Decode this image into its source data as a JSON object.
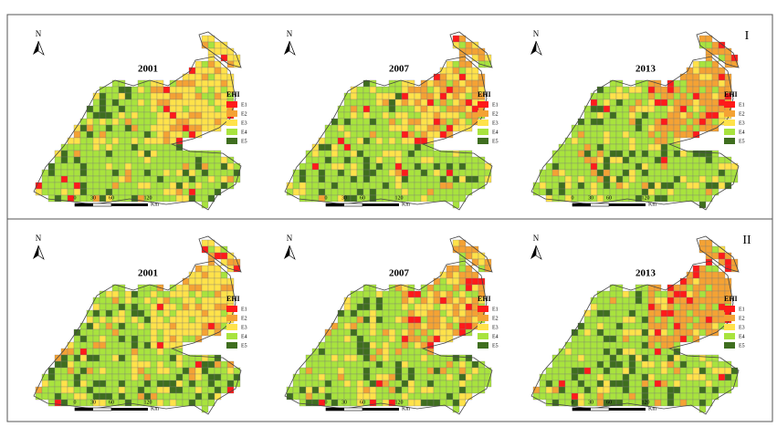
{
  "panels": [
    {
      "label": "I",
      "maps": [
        {
          "year": "2001"
        },
        {
          "year": "2007"
        },
        {
          "year": "2013"
        }
      ]
    },
    {
      "label": "II",
      "maps": [
        {
          "year": "2001"
        },
        {
          "year": "2007"
        },
        {
          "year": "2013"
        }
      ]
    }
  ],
  "legend": {
    "title": "EHI",
    "items": [
      {
        "label": "E1",
        "color": "#ff1a1a"
      },
      {
        "label": "E2",
        "color": "#f4a234"
      },
      {
        "label": "E3",
        "color": "#ffe24a"
      },
      {
        "label": "E4",
        "color": "#a8e33e"
      },
      {
        "label": "E5",
        "color": "#3f6e1f"
      }
    ]
  },
  "scale": {
    "ticks": [
      "0",
      "30",
      "60",
      "120"
    ],
    "unit": "Km"
  },
  "north": "N"
}
